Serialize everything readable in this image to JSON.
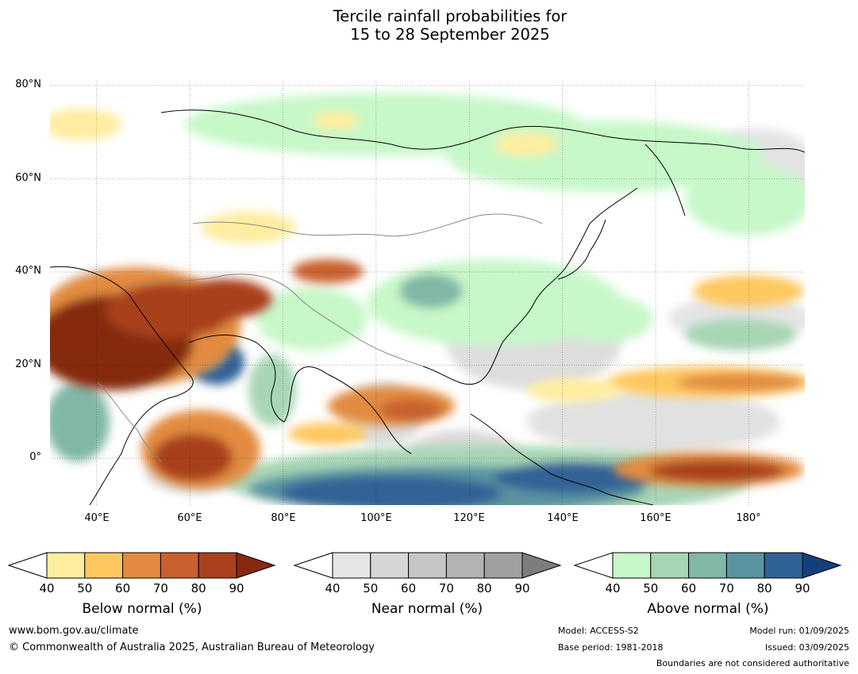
{
  "title": {
    "line1": "Tercile rainfall probabilities for",
    "line2": "15 to 28 September 2025"
  },
  "map": {
    "lat_labels": [
      "80°N",
      "60°N",
      "40°N",
      "20°N",
      "0°"
    ],
    "lon_labels": [
      "40°E",
      "60°E",
      "80°E",
      "100°E",
      "120°E",
      "140°E",
      "160°E",
      "180°"
    ],
    "extent": {
      "lon": [
        30,
        192
      ],
      "lat": [
        -10,
        81
      ]
    }
  },
  "colorbars": {
    "below": {
      "label": "Below normal (%)",
      "ticks": [
        "40",
        "50",
        "60",
        "70",
        "80",
        "90"
      ],
      "colors": [
        "#ffeda0",
        "#fec861",
        "#e28b40",
        "#c8602f",
        "#a9401e",
        "#85290f"
      ]
    },
    "near": {
      "label": "Near normal (%)",
      "ticks": [
        "40",
        "50",
        "60",
        "70",
        "80",
        "90"
      ],
      "colors": [
        "#e5e5e5",
        "#d6d6d6",
        "#c6c6c6",
        "#b3b3b3",
        "#a0a0a0",
        "#7d7d7d"
      ]
    },
    "above": {
      "label": "Above normal (%)",
      "ticks": [
        "40",
        "50",
        "60",
        "70",
        "80",
        "90"
      ],
      "colors": [
        "#c7f8c9",
        "#a7d6b5",
        "#80b7a7",
        "#5a93a1",
        "#306296",
        "#14407a"
      ]
    }
  },
  "footer": {
    "website": "www.bom.gov.au/climate",
    "copyright": "© Commonwealth of Australia 2025, Australian Bureau of Meteorology",
    "model": "Model: ACCESS-S2",
    "base_period": "Base period: 1981-2018",
    "model_run": "Model run: 01/09/2025",
    "issued": "Issued: 03/09/2025",
    "boundaries": "Boundaries are not considered authoritative"
  }
}
